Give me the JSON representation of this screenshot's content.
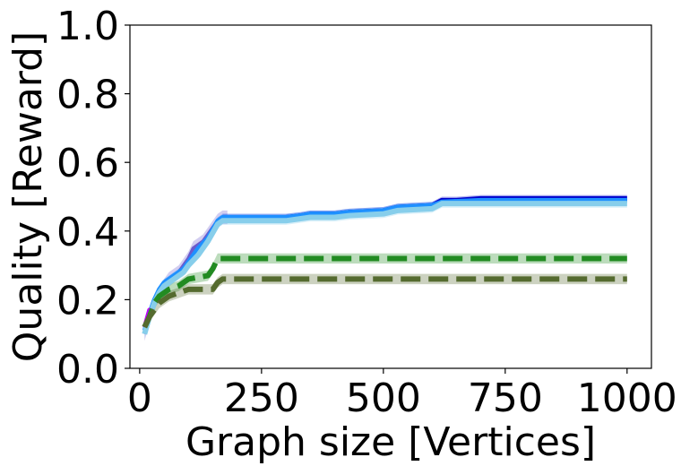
{
  "chart_data": {
    "type": "line",
    "title": "",
    "xlabel": "Graph size [Vertices]",
    "ylabel": "Quality [Reward]",
    "xlim": [
      -20,
      1050
    ],
    "ylim": [
      0,
      1.0
    ],
    "xticks": [
      0,
      250,
      500,
      750,
      1000
    ],
    "xtick_labels": [
      "0",
      "250",
      "500",
      "750",
      "1000"
    ],
    "yticks": [
      0.0,
      0.2,
      0.4,
      0.6,
      0.8,
      1.0
    ],
    "ytick_labels": [
      "0.0",
      "0.2",
      "0.4",
      "0.6",
      "0.8",
      "1.0"
    ],
    "grid": false,
    "legend": "none",
    "series": [
      {
        "color": "#6a5acd",
        "style": "solid",
        "width": 4,
        "band": 0.02,
        "x": [
          10,
          20,
          30,
          40,
          50,
          60,
          70,
          80,
          90,
          100,
          110,
          120,
          130,
          140,
          150,
          160,
          170,
          180
        ],
        "y": [
          0.1,
          0.15,
          0.19,
          0.22,
          0.24,
          0.26,
          0.27,
          0.28,
          0.3,
          0.32,
          0.35,
          0.36,
          0.37,
          0.39,
          0.41,
          0.43,
          0.44,
          0.44
        ]
      },
      {
        "color": "#0000cd",
        "style": "solid",
        "width": 5,
        "band": 0.01,
        "x": [
          170,
          200,
          250,
          300,
          330,
          350,
          400,
          430,
          500,
          530,
          600,
          620,
          650,
          700,
          1000
        ],
        "y": [
          0.44,
          0.44,
          0.44,
          0.44,
          0.445,
          0.45,
          0.45,
          0.455,
          0.46,
          0.47,
          0.475,
          0.49,
          0.49,
          0.495,
          0.495
        ]
      },
      {
        "color": "#1e90ff",
        "style": "solid",
        "width": 5,
        "band": 0.01,
        "x": [
          10,
          20,
          30,
          40,
          50,
          60,
          70,
          80,
          90,
          100,
          120,
          140,
          160,
          170,
          250,
          300,
          330,
          350,
          400,
          430,
          500,
          530,
          600,
          620,
          700,
          1000
        ],
        "y": [
          0.11,
          0.16,
          0.2,
          0.23,
          0.25,
          0.26,
          0.27,
          0.28,
          0.29,
          0.31,
          0.35,
          0.38,
          0.43,
          0.44,
          0.44,
          0.44,
          0.445,
          0.45,
          0.45,
          0.455,
          0.46,
          0.47,
          0.475,
          0.485,
          0.49,
          0.49
        ]
      },
      {
        "color": "#87ceeb",
        "style": "solid",
        "width": 6,
        "band": 0.012,
        "x": [
          10,
          20,
          30,
          40,
          50,
          60,
          70,
          80,
          90,
          100,
          120,
          140,
          160,
          170,
          250,
          300,
          350,
          400,
          430,
          500,
          530,
          600,
          620,
          1000
        ],
        "y": [
          0.1,
          0.15,
          0.19,
          0.22,
          0.24,
          0.25,
          0.26,
          0.27,
          0.28,
          0.3,
          0.33,
          0.37,
          0.42,
          0.43,
          0.43,
          0.43,
          0.44,
          0.44,
          0.445,
          0.45,
          0.46,
          0.465,
          0.48,
          0.48
        ]
      },
      {
        "color": "#bf00ff",
        "style": "dashed",
        "width": 5,
        "band": 0,
        "x": [
          10,
          20,
          30
        ],
        "y": [
          0.12,
          0.17,
          0.16
        ]
      },
      {
        "color": "#228b22",
        "style": "dashed",
        "width": 6,
        "band": 0.015,
        "x": [
          10,
          20,
          30,
          40,
          60,
          80,
          90,
          100,
          120,
          140,
          150,
          160,
          170,
          1000
        ],
        "y": [
          0.12,
          0.15,
          0.19,
          0.21,
          0.23,
          0.24,
          0.25,
          0.26,
          0.265,
          0.27,
          0.29,
          0.32,
          0.32,
          0.32
        ]
      },
      {
        "color": "#556b2f",
        "style": "dashed",
        "width": 6,
        "band": 0.015,
        "x": [
          10,
          20,
          30,
          40,
          60,
          80,
          100,
          120,
          150,
          160,
          170,
          1000
        ],
        "y": [
          0.12,
          0.15,
          0.17,
          0.19,
          0.21,
          0.22,
          0.23,
          0.23,
          0.23,
          0.25,
          0.26,
          0.26
        ]
      }
    ]
  }
}
